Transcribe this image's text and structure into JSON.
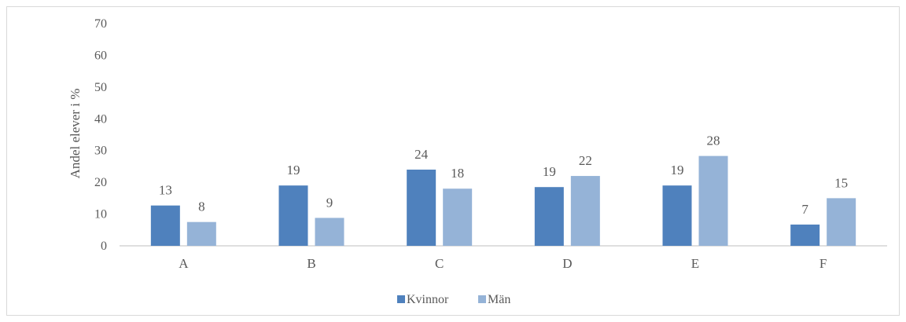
{
  "chart_data": {
    "type": "bar",
    "title": "",
    "xlabel": "",
    "ylabel": "Andel elever i %",
    "ylim": [
      0,
      70
    ],
    "yticks": [
      0,
      10,
      20,
      30,
      40,
      50,
      60,
      70
    ],
    "grid": false,
    "legend_position": "bottom",
    "categories": [
      "A",
      "B",
      "C",
      "D",
      "E",
      "F"
    ],
    "series": [
      {
        "name": "Kvinnor",
        "color": "#4f81bd",
        "values": [
          12.7,
          19,
          24,
          18.5,
          19,
          6.7
        ],
        "labels": [
          "13",
          "19",
          "24",
          "19",
          "19",
          "7"
        ]
      },
      {
        "name": "Män",
        "color": "#95b3d7",
        "values": [
          7.5,
          8.8,
          18,
          22,
          28.3,
          15
        ],
        "labels": [
          "8",
          "9",
          "18",
          "22",
          "28",
          "15"
        ]
      }
    ]
  }
}
